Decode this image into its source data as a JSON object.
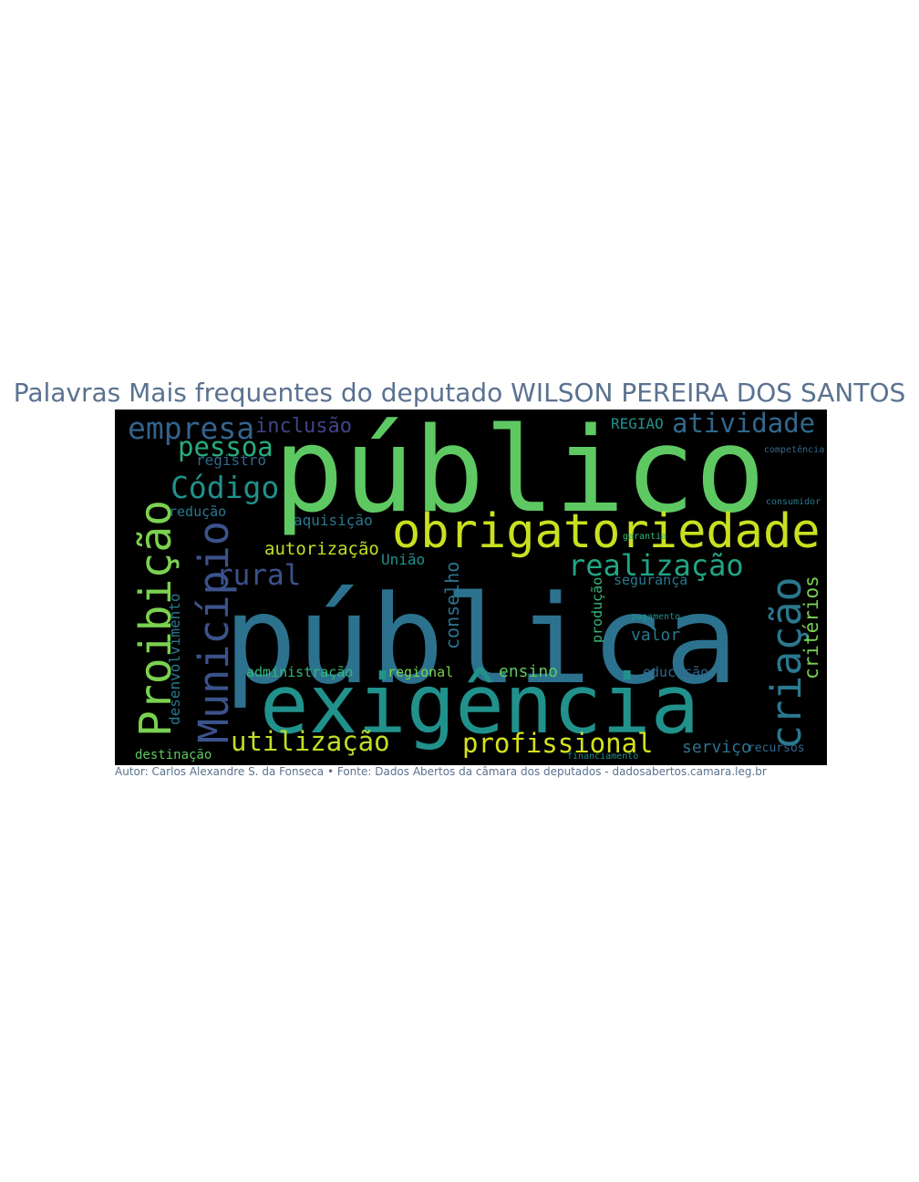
{
  "chart_data": {
    "type": "wordcloud",
    "title": "Palavras Mais frequentes do deputado WILSON PEREIRA DOS SANTOS",
    "caption": "Autor: Carlos Alexandre S. da Fonseca • Fonte: Dados Abertos da câmara dos deputados - dadosabertos.camara.leg.br",
    "background": "#000000",
    "words": [
      "público",
      "pública",
      "exigência",
      "obrigatoriedade",
      "Proibição",
      "Município",
      "criação",
      "critérios",
      "empresa",
      "inclusão",
      "pessoa",
      "atividade",
      "REGIAO",
      "Código",
      "registro",
      "rural",
      "realização",
      "utilização",
      "profissional",
      "conselho",
      "autorização",
      "União",
      "aquisição",
      "redução",
      "desenvolvimento",
      "administração",
      "regional",
      "ensino",
      "educação",
      "valor",
      "segurança",
      "serviço",
      "recursos",
      "destinação",
      "produção",
      "pagamento",
      "garantia",
      "consumidor",
      "competência",
      "financiamento"
    ],
    "colors": [
      "#5ec962",
      "#2c728e",
      "#21918c",
      "#c8e020",
      "#7ad151",
      "#3b528b",
      "#2a788e",
      "#7ad151",
      "#33638d",
      "#414487",
      "#27ad81",
      "#31688e",
      "#21918c",
      "#21918c",
      "#31688e",
      "#3b528b",
      "#21a585",
      "#bddf26",
      "#d5e21a",
      "#2c728e",
      "#c2df23",
      "#21918c",
      "#2a788e",
      "#2a788e",
      "#2a788e",
      "#35b779",
      "#7ad151",
      "#5ec962",
      "#31688e",
      "#2a788e",
      "#2a788e",
      "#2c728e",
      "#31688e",
      "#5ec962",
      "#35b779",
      "#21918c",
      "#35b779",
      "#2a788e",
      "#31688e",
      "#21918c"
    ]
  }
}
